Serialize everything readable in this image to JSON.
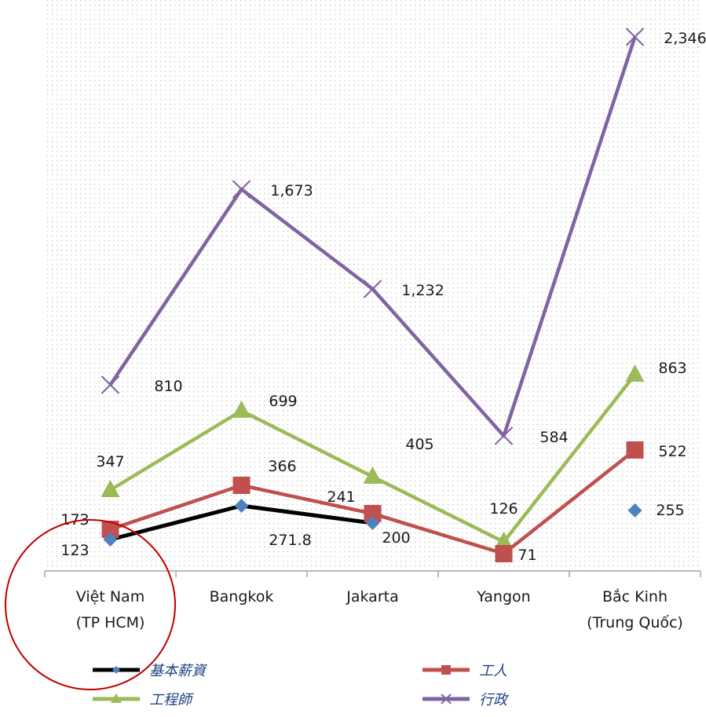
{
  "chart_data": {
    "type": "line",
    "categories": [
      [
        "Việt Nam",
        "(TP HCM)"
      ],
      [
        "Bangkok"
      ],
      [
        "Jakarta"
      ],
      [
        "Yangon"
      ],
      [
        "Bắc Kinh",
        "(Trung Quốc)"
      ]
    ],
    "ylim": [
      0,
      2500
    ],
    "grid": "dotted-background",
    "legend": "bottom",
    "series": [
      {
        "name": "基本薪資",
        "color": "#000000",
        "marker": "diamond",
        "marker_color": "#4f81bd",
        "values": [
          123,
          271.8,
          200,
          null,
          255
        ],
        "labels": [
          "123",
          "271.8",
          "200",
          "",
          "255"
        ]
      },
      {
        "name": "工人",
        "color": "#c0504d",
        "marker": "square",
        "marker_color": "#c0504d",
        "values": [
          173,
          366,
          241,
          71,
          522
        ],
        "labels": [
          "173",
          "366",
          "241",
          "71",
          "522"
        ]
      },
      {
        "name": "工程師",
        "color": "#9bbb59",
        "marker": "triangle",
        "marker_color": "#9bbb59",
        "values": [
          347,
          699,
          405,
          126,
          863
        ],
        "labels": [
          "347",
          "699",
          "405",
          "126",
          "863"
        ]
      },
      {
        "name": "行政",
        "color": "#8064a2",
        "marker": "x",
        "marker_color": "#8064a2",
        "values": [
          810,
          1673,
          1232,
          584,
          2346
        ],
        "labels": [
          "810",
          "1,673",
          "1,232",
          "584",
          "2,346"
        ]
      }
    ],
    "annotation": {
      "shape": "circle",
      "color": "#c00000",
      "target": "Việt Nam (TP HCM)"
    }
  }
}
